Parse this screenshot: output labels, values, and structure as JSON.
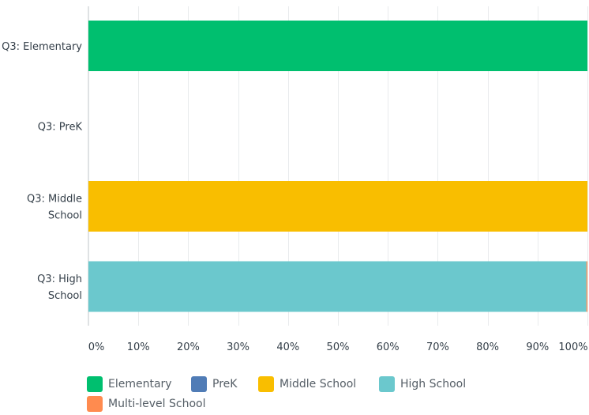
{
  "chart_data": {
    "type": "bar",
    "orientation": "horizontal",
    "stacked": true,
    "categories": [
      "Q3: Elementary",
      "Q3: PreK",
      "Q3: Middle School",
      "Q3: High School"
    ],
    "category_lines": [
      [
        "Q3: Elementary"
      ],
      [
        "Q3: PreK"
      ],
      [
        "Q3: Middle",
        "School"
      ],
      [
        "Q3: High",
        "School"
      ]
    ],
    "series": [
      {
        "name": "Elementary",
        "color": "#00bf6f",
        "values": [
          100,
          0,
          0,
          0
        ]
      },
      {
        "name": "PreK",
        "color": "#507cb6",
        "values": [
          0,
          0,
          0,
          0
        ]
      },
      {
        "name": "Middle School",
        "color": "#f9be00",
        "values": [
          0,
          0,
          100,
          0
        ]
      },
      {
        "name": "High School",
        "color": "#6bc8cd",
        "values": [
          0,
          0,
          0,
          99.8
        ]
      },
      {
        "name": "Multi-level School",
        "color": "#ff8b4f",
        "values": [
          0,
          0,
          0,
          0.2
        ]
      }
    ],
    "xlim": [
      0,
      100
    ],
    "x_ticks": [
      "0%",
      "10%",
      "20%",
      "30%",
      "40%",
      "50%",
      "60%",
      "70%",
      "80%",
      "90%",
      "100%"
    ],
    "grid": true,
    "legend_position": "bottom"
  }
}
